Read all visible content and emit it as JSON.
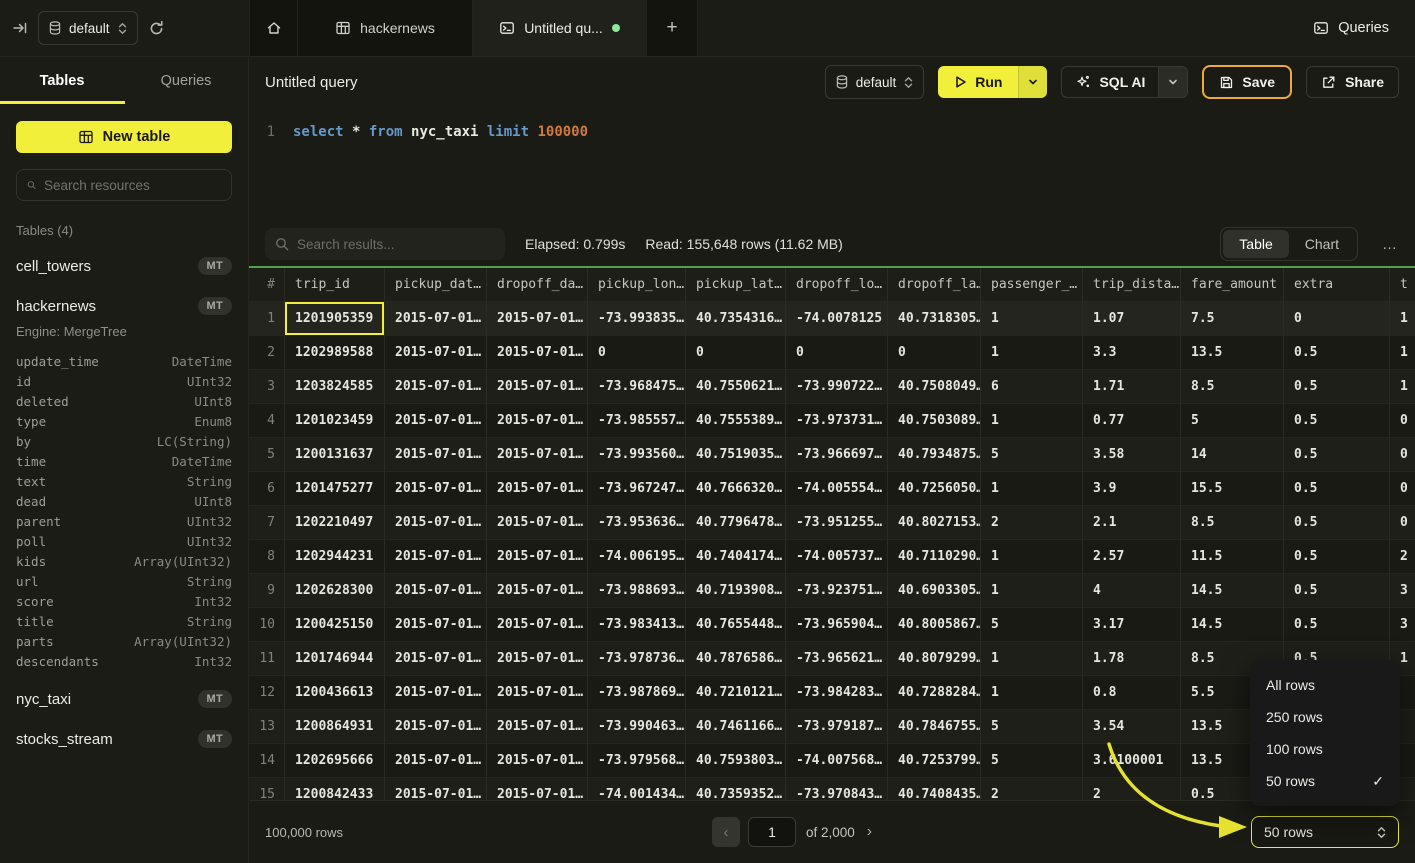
{
  "topbar": {
    "database_selector": {
      "value": "default"
    },
    "tabs": {
      "hackernews": "hackernews",
      "untitled": "Untitled qu...",
      "plus": "+"
    },
    "queries_label": "Queries"
  },
  "sidebar": {
    "tabs": {
      "tables": "Tables",
      "queries": "Queries"
    },
    "new_table_label": "New table",
    "search_placeholder": "Search resources",
    "section_title": "Tables (4)",
    "tables": [
      {
        "name": "cell_towers",
        "badge": "MT"
      },
      {
        "name": "hackernews",
        "badge": "MT",
        "engine": "Engine: MergeTree",
        "columns": [
          [
            "update_time",
            "DateTime"
          ],
          [
            "id",
            "UInt32"
          ],
          [
            "deleted",
            "UInt8"
          ],
          [
            "type",
            "Enum8"
          ],
          [
            "by",
            "LC(String)"
          ],
          [
            "time",
            "DateTime"
          ],
          [
            "text",
            "String"
          ],
          [
            "dead",
            "UInt8"
          ],
          [
            "parent",
            "UInt32"
          ],
          [
            "poll",
            "UInt32"
          ],
          [
            "kids",
            "Array(UInt32)"
          ],
          [
            "url",
            "String"
          ],
          [
            "score",
            "Int32"
          ],
          [
            "title",
            "String"
          ],
          [
            "parts",
            "Array(UInt32)"
          ],
          [
            "descendants",
            "Int32"
          ]
        ]
      },
      {
        "name": "nyc_taxi",
        "badge": "MT"
      },
      {
        "name": "stocks_stream",
        "badge": "MT"
      }
    ]
  },
  "query": {
    "title": "Untitled query",
    "database_selector": {
      "value": "default"
    },
    "run_label": "Run",
    "sql_ai_label": "SQL AI",
    "save_label": "Save",
    "share_label": "Share",
    "editor": {
      "line_number": "1",
      "tokens": [
        {
          "text": "select",
          "type": "keyword"
        },
        {
          "text": "*",
          "type": "plain"
        },
        {
          "text": "from",
          "type": "keyword"
        },
        {
          "text": "nyc_taxi",
          "type": "identifier"
        },
        {
          "text": "limit",
          "type": "keyword"
        },
        {
          "text": "100000",
          "type": "number"
        }
      ]
    }
  },
  "results": {
    "search_placeholder": "Search results...",
    "elapsed": "Elapsed: 0.799s",
    "read": "Read: 155,648 rows (11.62 MB)",
    "view_toggle": {
      "table": "Table",
      "chart": "Chart"
    },
    "active_view": "Table",
    "more_label": "…"
  },
  "table": {
    "columns": [
      "#",
      "trip_id",
      "pickup_dat…",
      "dropoff_da…",
      "pickup_lon…",
      "pickup_lat…",
      "dropoff_lo…",
      "dropoff_la…",
      "passenger_…",
      "trip_dista…",
      "fare_amount",
      "extra",
      "t"
    ],
    "selected_cell": {
      "row": 1,
      "column": "trip_id"
    },
    "rows": [
      [
        "1201905359",
        "2015-07-01…",
        "2015-07-01…",
        "-73.993835…",
        "40.7354316…",
        "-74.0078125",
        "40.7318305…",
        "1",
        "1.07",
        "7.5",
        "0",
        "1"
      ],
      [
        "1202989588",
        "2015-07-01…",
        "2015-07-01…",
        "0",
        "0",
        "0",
        "0",
        "1",
        "3.3",
        "13.5",
        "0.5",
        "1"
      ],
      [
        "1203824585",
        "2015-07-01…",
        "2015-07-01…",
        "-73.968475…",
        "40.7550621…",
        "-73.990722…",
        "40.7508049…",
        "6",
        "1.71",
        "8.5",
        "0.5",
        "1"
      ],
      [
        "1201023459",
        "2015-07-01…",
        "2015-07-01…",
        "-73.985557…",
        "40.7555389…",
        "-73.973731…",
        "40.7503089…",
        "1",
        "0.77",
        "5",
        "0.5",
        "0"
      ],
      [
        "1200131637",
        "2015-07-01…",
        "2015-07-01…",
        "-73.993560…",
        "40.7519035…",
        "-73.966697…",
        "40.7934875…",
        "5",
        "3.58",
        "14",
        "0.5",
        "0"
      ],
      [
        "1201475277",
        "2015-07-01…",
        "2015-07-01…",
        "-73.967247…",
        "40.7666320…",
        "-74.005554…",
        "40.7256050…",
        "1",
        "3.9",
        "15.5",
        "0.5",
        "0"
      ],
      [
        "1202210497",
        "2015-07-01…",
        "2015-07-01…",
        "-73.953636…",
        "40.7796478…",
        "-73.951255…",
        "40.8027153…",
        "2",
        "2.1",
        "8.5",
        "0.5",
        "0"
      ],
      [
        "1202944231",
        "2015-07-01…",
        "2015-07-01…",
        "-74.006195…",
        "40.7404174…",
        "-74.005737…",
        "40.7110290…",
        "1",
        "2.57",
        "11.5",
        "0.5",
        "2"
      ],
      [
        "1202628300",
        "2015-07-01…",
        "2015-07-01…",
        "-73.988693…",
        "40.7193908…",
        "-73.923751…",
        "40.6903305…",
        "1",
        "4",
        "14.5",
        "0.5",
        "3"
      ],
      [
        "1200425150",
        "2015-07-01…",
        "2015-07-01…",
        "-73.983413…",
        "40.7655448…",
        "-73.965904…",
        "40.8005867…",
        "5",
        "3.17",
        "14.5",
        "0.5",
        "3"
      ],
      [
        "1201746944",
        "2015-07-01…",
        "2015-07-01…",
        "-73.978736…",
        "40.7876586…",
        "-73.965621…",
        "40.8079299…",
        "1",
        "1.78",
        "8.5",
        "0.5",
        "1"
      ],
      [
        "1200436613",
        "2015-07-01…",
        "2015-07-01…",
        "-73.987869…",
        "40.7210121…",
        "-73.984283…",
        "40.7288284…",
        "1",
        "0.8",
        "5.5",
        "0.5",
        ""
      ],
      [
        "1200864931",
        "2015-07-01…",
        "2015-07-01…",
        "-73.990463…",
        "40.7461166…",
        "-73.979187…",
        "40.7846755…",
        "5",
        "3.54",
        "13.5",
        "0.5",
        ""
      ],
      [
        "1202695666",
        "2015-07-01…",
        "2015-07-01…",
        "-73.979568…",
        "40.7593803…",
        "-74.007568…",
        "40.7253799…",
        "5",
        "3.6100001",
        "13.5",
        "0.5",
        ""
      ],
      [
        "1200842433",
        "2015-07-01…",
        "2015-07-01…",
        "-74.001434…",
        "40.7359352…",
        "-73.970843…",
        "40.7408435…",
        "2",
        "2",
        "0.5",
        "",
        ""
      ]
    ]
  },
  "rows_menu": {
    "items": [
      {
        "label": "All rows",
        "checked": false
      },
      {
        "label": "250 rows",
        "checked": false
      },
      {
        "label": "100 rows",
        "checked": false
      },
      {
        "label": "50 rows",
        "checked": true
      }
    ]
  },
  "footer": {
    "row_count": "100,000 rows",
    "page_value": "1",
    "page_total": "of 2,000",
    "page_size": "50 rows"
  },
  "colors": {
    "accent_yellow": "#f1ef3a",
    "save_border_orange": "#ecaa3d",
    "table_top_green": "#4fa14f",
    "tab_dot_green": "#8ce99a"
  }
}
